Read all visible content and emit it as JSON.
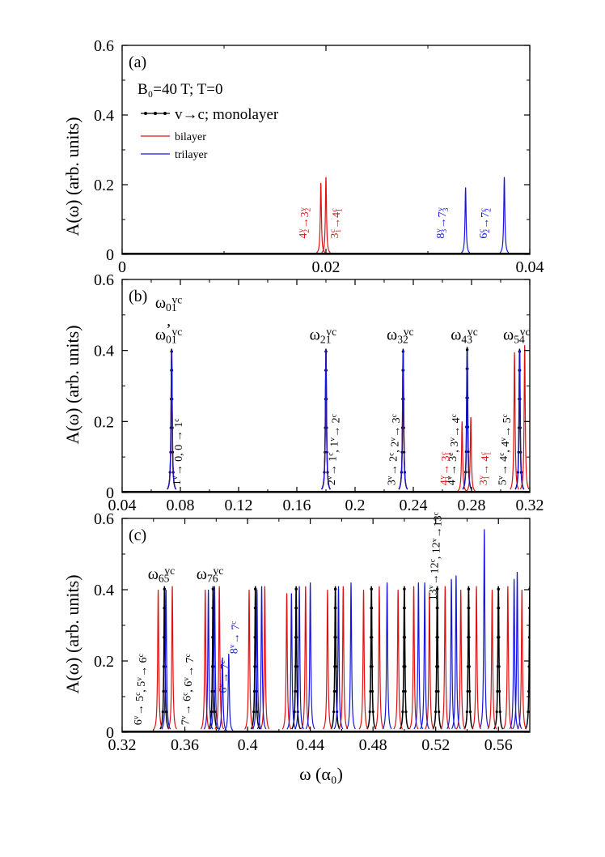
{
  "figure": {
    "xlabel": "ω (α₀)",
    "ylabel": "A(ω) (arb. units)",
    "colors": {
      "monolayer": "#000000",
      "bilayer": "#dd1111",
      "trilayer": "#1515dd"
    }
  },
  "chart_data": [
    {
      "type": "line",
      "panel_label": "(a)",
      "xlim": [
        0,
        0.04
      ],
      "ylim": [
        0,
        0.6
      ],
      "xticks": [
        "0",
        "0.02",
        "0.04"
      ],
      "yticks": [
        "0",
        "0.2",
        "0.4",
        "0.6"
      ],
      "condition_text": "B₀=40 T; T=0",
      "legend": [
        {
          "label": "v→c; monolayer",
          "color": "#000000",
          "marker": true
        },
        {
          "label": "bilayer",
          "color": "#dd1111"
        },
        {
          "label": "trilayer",
          "color": "#1515dd"
        }
      ],
      "series": [
        {
          "name": "bilayer",
          "color": "#dd1111",
          "peaks": [
            [
              0.0195,
              0.205
            ],
            [
              0.02,
              0.222
            ]
          ]
        },
        {
          "name": "trilayer",
          "color": "#1515dd",
          "peaks": [
            [
              0.0337,
              0.192
            ],
            [
              0.0375,
              0.222
            ]
          ]
        }
      ],
      "annotations": [
        {
          "text": "4₂ᵛ→3₂ᵛ",
          "color": "#dd1111",
          "x": 0.0181,
          "y": 0.045
        },
        {
          "text": "3₁ᶜ→4₁ᶜ",
          "color": "#dd1111",
          "x": 0.0212,
          "y": 0.045
        },
        {
          "text": "8₃ᵛ→7₃ᵛ",
          "color": "#1515dd",
          "x": 0.0316,
          "y": 0.045
        },
        {
          "text": "6₂ᶜ→7₂ᶜ",
          "color": "#1515dd",
          "x": 0.0358,
          "y": 0.045
        }
      ]
    },
    {
      "type": "line",
      "panel_label": "(b)",
      "xlim": [
        0.04,
        0.32
      ],
      "ylim": [
        0,
        0.6
      ],
      "xticks": [
        "0.04",
        "0.08",
        "0.12",
        "0.16",
        "0.2",
        "0.24",
        "0.28",
        "0.32"
      ],
      "yticks": [
        "0",
        "0.2",
        "0.4",
        "0.6"
      ],
      "series": [
        {
          "name": "monolayer",
          "color": "#000000",
          "markers": true,
          "peaks": [
            [
              0.074,
              0.405
            ],
            [
              0.18,
              0.405
            ],
            [
              0.233,
              0.405
            ],
            [
              0.277,
              0.41
            ],
            [
              0.313,
              0.405
            ]
          ]
        },
        {
          "name": "bilayer",
          "color": "#dd1111",
          "peaks": [
            [
              0.074,
              0.4
            ],
            [
              0.18,
              0.4
            ],
            [
              0.233,
              0.4
            ],
            [
              0.2735,
              0.2
            ],
            [
              0.2795,
              0.212
            ],
            [
              0.3095,
              0.395
            ],
            [
              0.3165,
              0.415
            ]
          ]
        },
        {
          "name": "trilayer",
          "color": "#1515dd",
          "peaks": [
            [
              0.074,
              0.4
            ],
            [
              0.18,
              0.4
            ],
            [
              0.233,
              0.4
            ],
            [
              0.277,
              0.4
            ],
            [
              0.313,
              0.4
            ]
          ]
        }
      ],
      "omega_labels": [
        {
          "text": "ω₀₁ᵛᶜ",
          "x": 0.072,
          "y": 0.52
        },
        {
          "text": ",",
          "x": 0.072,
          "y": 0.47
        },
        {
          "text": "ω₀₁ᵛᶜ",
          "x": 0.072,
          "y": 0.43
        },
        {
          "text": "ω₂₁ᵛᶜ",
          "x": 0.178,
          "y": 0.43
        },
        {
          "text": "ω₃₂ᵛᶜ",
          "x": 0.231,
          "y": 0.43
        },
        {
          "text": "ω₄₃ᵛᶜ",
          "x": 0.275,
          "y": 0.43
        },
        {
          "text": "ω₅₄ᵛᶜ",
          "x": 0.311,
          "y": 0.43
        }
      ],
      "annotations": [
        {
          "text": "1ᵛ→ 0, 0 → 1ᶜ",
          "color": "#000000",
          "x": 0.08,
          "y": 0.02
        },
        {
          "text": "2ᵛ→ 1ᶜ, 1ᵛ→ 2ᶜ",
          "color": "#000000",
          "x": 0.186,
          "y": 0.02
        },
        {
          "text": "3ᵛ→ 2ᶜ, 2ᵛ→ 3ᶜ",
          "color": "#000000",
          "x": 0.2275,
          "y": 0.02
        },
        {
          "text": "4₁ᵛ→ 3₁ᶜ",
          "color": "#dd1111",
          "x": 0.2635,
          "y": 0.02
        },
        {
          "text": "4ᵛ→ 3ᶜ, 3ᵛ→ 4ᶜ",
          "color": "#000000",
          "x": 0.2685,
          "y": 0.02
        },
        {
          "text": "3₁ᵛ→ 4₁ᶜ",
          "color": "#dd1111",
          "x": 0.2905,
          "y": 0.02
        },
        {
          "text": "5ᵛ→ 4ᶜ, 4ᵛ→ 5ᶜ",
          "color": "#000000",
          "x": 0.3035,
          "y": 0.02
        }
      ]
    },
    {
      "type": "line",
      "panel_label": "(c)",
      "xlim": [
        0.32,
        0.58
      ],
      "ylim": [
        0,
        0.6
      ],
      "xticks": [
        "0.32",
        "0.36",
        "0.4",
        "0.44",
        "0.48",
        "0.52",
        "0.56"
      ],
      "yticks": [
        "0",
        "0.2",
        "0.4",
        "0.6"
      ],
      "series": [
        {
          "name": "monolayer",
          "color": "#000000",
          "markers": true,
          "peaks": [
            [
              0.347,
              0.41
            ],
            [
              0.378,
              0.41
            ],
            [
              0.405,
              0.41
            ],
            [
              0.431,
              0.41
            ],
            [
              0.456,
              0.41
            ],
            [
              0.479,
              0.41
            ],
            [
              0.5,
              0.41
            ],
            [
              0.521,
              0.41
            ],
            [
              0.541,
              0.41
            ],
            [
              0.56,
              0.41
            ],
            [
              0.58,
              0.41
            ]
          ]
        },
        {
          "name": "bilayer",
          "color": "#dd1111",
          "peaks": [
            [
              0.343,
              0.4
            ],
            [
              0.352,
              0.41
            ],
            [
              0.373,
              0.4
            ],
            [
              0.382,
              0.41
            ],
            [
              0.401,
              0.4
            ],
            [
              0.411,
              0.41
            ],
            [
              0.425,
              0.39
            ],
            [
              0.437,
              0.41
            ],
            [
              0.451,
              0.4
            ],
            [
              0.461,
              0.41
            ],
            [
              0.474,
              0.4
            ],
            [
              0.484,
              0.41
            ],
            [
              0.496,
              0.4
            ],
            [
              0.506,
              0.41
            ],
            [
              0.516,
              0.39
            ],
            [
              0.526,
              0.41
            ],
            [
              0.536,
              0.4
            ],
            [
              0.546,
              0.41
            ],
            [
              0.556,
              0.4
            ],
            [
              0.566,
              0.41
            ],
            [
              0.575,
              0.4
            ]
          ]
        },
        {
          "name": "trilayer",
          "color": "#1515dd",
          "peaks": [
            [
              0.348,
              0.4
            ],
            [
              0.375,
              0.4
            ],
            [
              0.379,
              0.41
            ],
            [
              0.384,
              0.21
            ],
            [
              0.388,
              0.22
            ],
            [
              0.406,
              0.4
            ],
            [
              0.409,
              0.41
            ],
            [
              0.428,
              0.39
            ],
            [
              0.433,
              0.41
            ],
            [
              0.44,
              0.42
            ],
            [
              0.458,
              0.41
            ],
            [
              0.466,
              0.42
            ],
            [
              0.489,
              0.42
            ],
            [
              0.509,
              0.42
            ],
            [
              0.513,
              0.42
            ],
            [
              0.53,
              0.43
            ],
            [
              0.533,
              0.44
            ],
            [
              0.551,
              0.57
            ],
            [
              0.57,
              0.43
            ],
            [
              0.572,
              0.45
            ]
          ]
        }
      ],
      "omega_labels": [
        {
          "text": "ω₆₅ᵛᶜ",
          "x": 0.345,
          "y": 0.43
        },
        {
          "text": "ω₇₆ᵛᶜ",
          "x": 0.376,
          "y": 0.43
        }
      ],
      "annotations": [
        {
          "text": "6ᵛ→ 5ᶜ, 5ᵛ→ 6ᶜ",
          "color": "#000000",
          "x": 0.3325,
          "y": 0.02
        },
        {
          "text": "7ᵛ→ 6ᶜ, 6ᵛ→ 7ᶜ",
          "color": "#000000",
          "x": 0.3625,
          "y": 0.02
        },
        {
          "text": "6ᵛ→ 7ᶜ",
          "color": "#1515dd",
          "x": 0.3865,
          "y": 0.11
        },
        {
          "text": "8ᵛ→ 7ᶜ",
          "color": "#1515dd",
          "x": 0.3935,
          "y": 0.22
        },
        {
          "text": "13ᵛ→12ᶜ, 12ᵛ→13ᶜ",
          "color": "#000000",
          "x": 0.5205,
          "y": 0.37
        }
      ]
    }
  ]
}
